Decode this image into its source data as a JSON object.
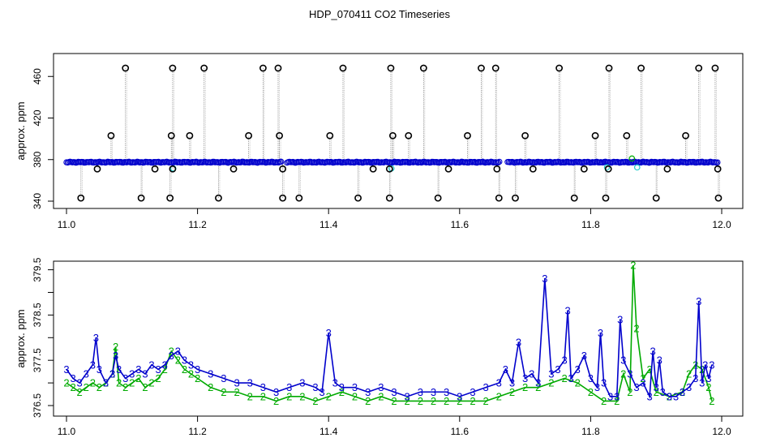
{
  "title": "HDP_070411  CO2 Timeseries",
  "colors": {
    "outlier": "#000000",
    "raw_line": "#9a9a9a",
    "series3": "#0000cc",
    "series2": "#00aa00",
    "cyan": "#22cccc",
    "axis": "#000000"
  },
  "chart_data": [
    {
      "type": "scatter",
      "title": "HDP_070411  CO2 Timeseries",
      "xlabel": "",
      "ylabel": "approx. ppm",
      "xlim": [
        11.0,
        12.0
      ],
      "ylim": [
        340,
        470
      ],
      "x_ticks": [
        11.0,
        11.2,
        11.4,
        11.6,
        11.8,
        12.0
      ],
      "x_tick_labels": [
        "11.0",
        "11.2",
        "11.4",
        "11.6",
        "11.8",
        "12.0"
      ],
      "y_ticks": [
        340,
        380,
        420,
        460
      ],
      "y_tick_labels": [
        "340",
        "380",
        "420",
        "460"
      ],
      "baseline_ppm": 377.5,
      "high_outliers": {
        "value": 468,
        "x": [
          11.09,
          11.162,
          11.21,
          11.3,
          11.323,
          11.422,
          11.495,
          11.545,
          11.633,
          11.655,
          11.752,
          11.828,
          11.877,
          11.965,
          11.99
        ]
      },
      "mid_outliers": {
        "value": 403,
        "x": [
          11.068,
          11.16,
          11.188,
          11.278,
          11.325,
          11.402,
          11.498,
          11.522,
          11.612,
          11.7,
          11.807,
          11.855,
          11.945
        ]
      },
      "low_outliers": {
        "value": 343,
        "x": [
          11.022,
          11.114,
          11.158,
          11.232,
          11.33,
          11.355,
          11.445,
          11.493,
          11.567,
          11.66,
          11.685,
          11.775,
          11.823,
          11.9,
          11.995
        ]
      },
      "dip_outliers": {
        "value": 371,
        "x": [
          11.047,
          11.135,
          11.162,
          11.255,
          11.33,
          11.468,
          11.493,
          11.583,
          11.657,
          11.712,
          11.79,
          11.827,
          11.917,
          11.994
        ]
      },
      "gaps": [
        [
          11.328,
          11.335
        ],
        [
          11.662,
          11.672
        ]
      ]
    },
    {
      "type": "line",
      "title": "",
      "xlabel": "",
      "ylabel": "approx. ppm",
      "xlim": [
        11.0,
        12.0
      ],
      "ylim": [
        376.4,
        379.7
      ],
      "x_ticks": [
        11.0,
        11.2,
        11.4,
        11.6,
        11.8,
        12.0
      ],
      "x_tick_labels": [
        "11.0",
        "11.2",
        "11.4",
        "11.6",
        "11.8",
        "12.0"
      ],
      "y_ticks": [
        376.5,
        377.0,
        377.5,
        378.0,
        378.5,
        379.0,
        379.5
      ],
      "y_tick_labels": [
        "376.5",
        "377.5",
        "378.5",
        "379.5"
      ],
      "series": [
        {
          "marker": "3",
          "color": "#0000cc",
          "x": [
            11.0,
            11.01,
            11.02,
            11.03,
            11.04,
            11.045,
            11.05,
            11.06,
            11.07,
            11.075,
            11.08,
            11.09,
            11.1,
            11.11,
            11.12,
            11.13,
            11.14,
            11.15,
            11.16,
            11.17,
            11.18,
            11.19,
            11.2,
            11.22,
            11.24,
            11.26,
            11.28,
            11.3,
            11.32,
            11.34,
            11.36,
            11.38,
            11.39,
            11.4,
            11.41,
            11.42,
            11.44,
            11.46,
            11.48,
            11.5,
            11.52,
            11.54,
            11.56,
            11.58,
            11.6,
            11.62,
            11.64,
            11.66,
            11.67,
            11.68,
            11.69,
            11.7,
            11.71,
            11.72,
            11.73,
            11.74,
            11.75,
            11.76,
            11.765,
            11.77,
            11.78,
            11.79,
            11.8,
            11.81,
            11.815,
            11.82,
            11.83,
            11.84,
            11.845,
            11.85,
            11.86,
            11.87,
            11.88,
            11.89,
            11.895,
            11.9,
            11.905,
            11.91,
            11.92,
            11.93,
            11.94,
            11.95,
            11.96,
            11.965,
            11.97,
            11.975,
            11.98,
            11.985
          ],
          "y": [
            377.3,
            377.1,
            377.0,
            377.2,
            377.4,
            378.0,
            377.3,
            377.0,
            377.2,
            377.6,
            377.3,
            377.1,
            377.2,
            377.3,
            377.2,
            377.4,
            377.3,
            377.4,
            377.6,
            377.7,
            377.5,
            377.4,
            377.3,
            377.2,
            377.1,
            377.0,
            377.0,
            376.9,
            376.8,
            376.9,
            377.0,
            376.9,
            376.8,
            378.1,
            377.0,
            376.9,
            376.9,
            376.8,
            376.9,
            376.8,
            376.7,
            376.8,
            376.8,
            376.8,
            376.7,
            376.8,
            376.9,
            377.0,
            377.3,
            377.0,
            377.9,
            377.1,
            377.2,
            377.0,
            379.3,
            377.2,
            377.3,
            377.5,
            378.6,
            377.1,
            377.3,
            377.6,
            377.1,
            376.9,
            378.1,
            377.0,
            376.7,
            376.7,
            378.4,
            377.5,
            377.2,
            376.9,
            377.0,
            376.7,
            377.7,
            376.9,
            377.5,
            376.8,
            376.7,
            376.7,
            376.8,
            376.9,
            377.1,
            378.8,
            377.0,
            377.4,
            377.1,
            377.4
          ]
        },
        {
          "marker": "2",
          "color": "#00aa00",
          "x": [
            11.0,
            11.01,
            11.02,
            11.03,
            11.04,
            11.05,
            11.06,
            11.07,
            11.075,
            11.08,
            11.09,
            11.1,
            11.11,
            11.12,
            11.13,
            11.14,
            11.15,
            11.16,
            11.17,
            11.18,
            11.19,
            11.2,
            11.22,
            11.24,
            11.26,
            11.28,
            11.3,
            11.32,
            11.34,
            11.36,
            11.38,
            11.4,
            11.42,
            11.44,
            11.46,
            11.48,
            11.5,
            11.52,
            11.54,
            11.56,
            11.58,
            11.6,
            11.62,
            11.64,
            11.66,
            11.68,
            11.7,
            11.72,
            11.74,
            11.76,
            11.78,
            11.8,
            11.82,
            11.84,
            11.85,
            11.86,
            11.865,
            11.87,
            11.88,
            11.89,
            11.9,
            11.92,
            11.94,
            11.95,
            11.96,
            11.97,
            11.98,
            11.985
          ],
          "y": [
            377.0,
            376.9,
            376.8,
            376.9,
            377.0,
            376.9,
            377.0,
            377.2,
            377.8,
            377.0,
            376.9,
            377.0,
            377.1,
            376.9,
            377.0,
            377.1,
            377.3,
            377.7,
            377.5,
            377.3,
            377.2,
            377.1,
            376.9,
            376.8,
            376.8,
            376.7,
            376.7,
            376.6,
            376.7,
            376.7,
            376.6,
            376.7,
            376.8,
            376.7,
            376.6,
            376.7,
            376.6,
            376.6,
            376.6,
            376.6,
            376.6,
            376.6,
            376.6,
            376.6,
            376.7,
            376.8,
            376.9,
            376.9,
            377.0,
            377.1,
            377.0,
            376.8,
            376.6,
            376.6,
            377.2,
            376.8,
            379.6,
            378.2,
            377.1,
            377.3,
            376.8,
            376.7,
            376.8,
            377.2,
            377.4,
            377.3,
            376.9,
            376.6
          ]
        }
      ]
    }
  ]
}
